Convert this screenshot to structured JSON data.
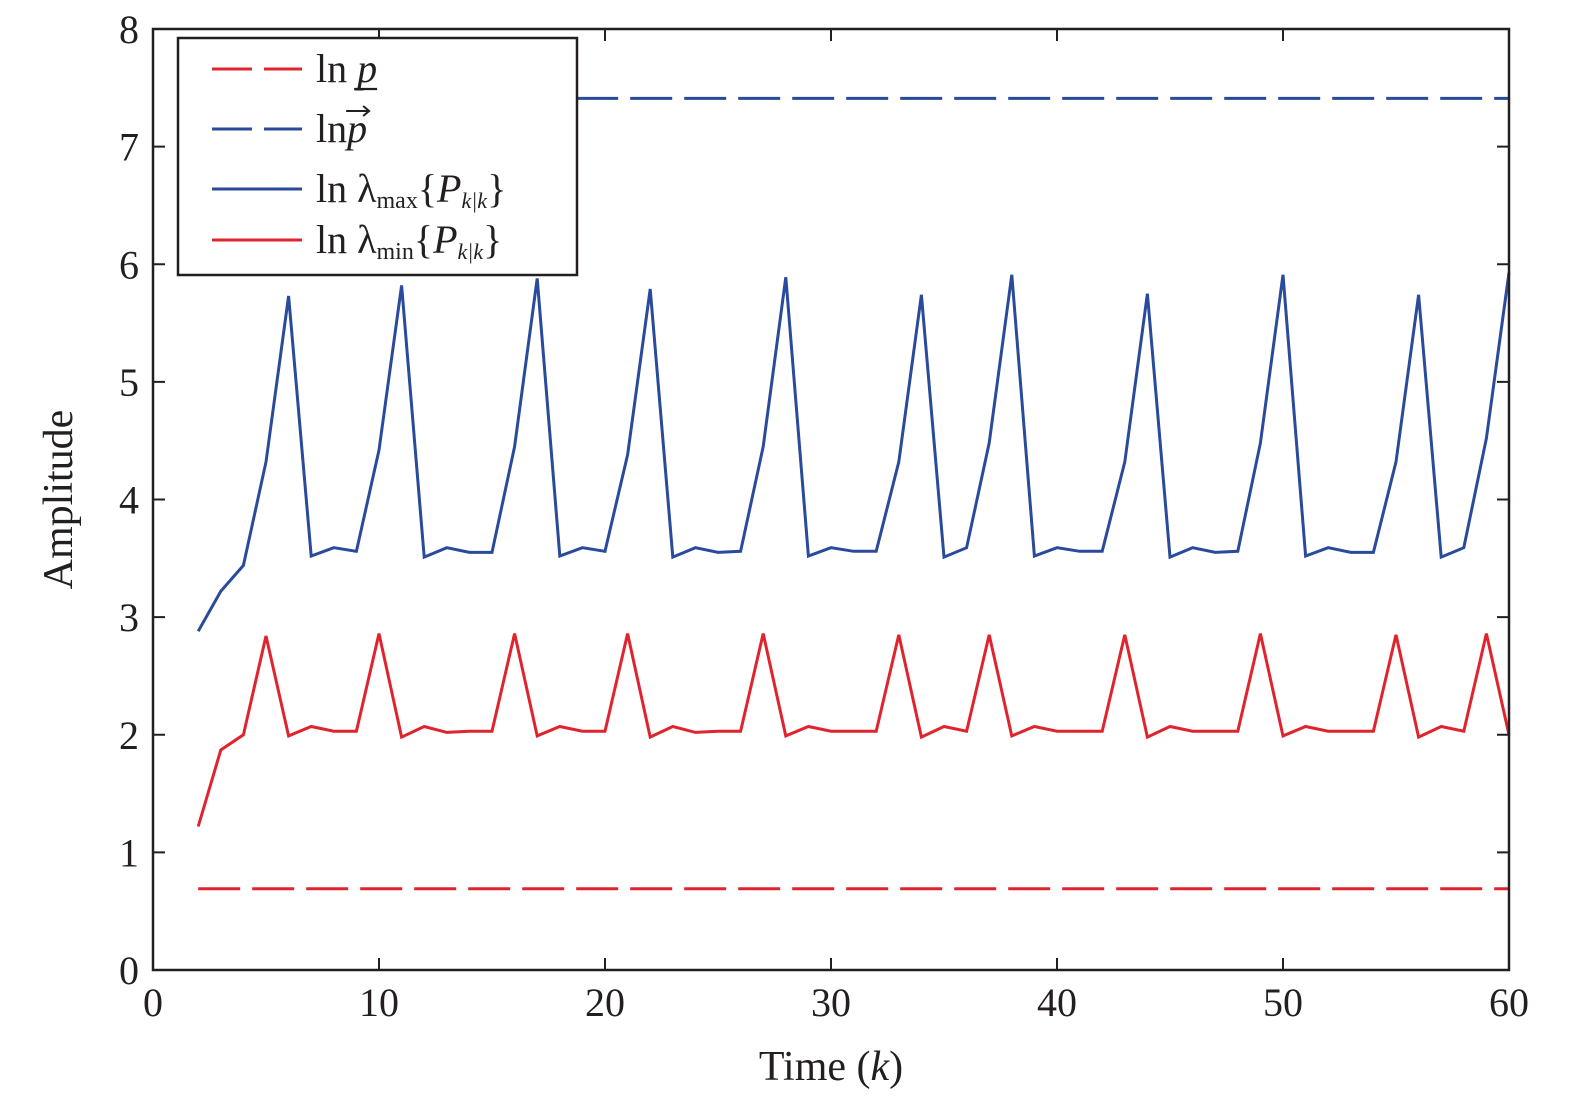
{
  "chart_data": {
    "type": "line",
    "title": "",
    "xlabel": {
      "text": "Time (",
      "var": "k",
      "close": ")"
    },
    "ylabel": "Amplitude",
    "xlim": [
      0,
      60
    ],
    "ylim": [
      0,
      8
    ],
    "xticks": [
      0,
      10,
      20,
      30,
      40,
      50,
      60
    ],
    "yticks": [
      0,
      1,
      2,
      3,
      4,
      5,
      6,
      7,
      8
    ],
    "grid": false,
    "legend_position": "top-left",
    "colors": {
      "red": "#e0242e",
      "blue": "#2a4b9b",
      "axis": "#231f20"
    },
    "series": [
      {
        "id": "ln-p-lower",
        "style": "dashed",
        "color": "#e0242e",
        "legend": {
          "prefix": "ln ",
          "var": "p"
        },
        "x": [
          2,
          60
        ],
        "y": [
          0.69,
          0.69
        ]
      },
      {
        "id": "ln-p-upper",
        "style": "dashed",
        "color": "#2a4b9b",
        "legend": {
          "prefix": "ln",
          "var": "p"
        },
        "x": [
          2,
          60
        ],
        "y": [
          7.41,
          7.41
        ]
      },
      {
        "id": "ln-lambda-max",
        "style": "solid",
        "color": "#2a4b9b",
        "legend": {
          "prefix": "ln λ",
          "sub": "max",
          "open": "{",
          "var": "P",
          "varsub": "k|k",
          "close": "}"
        },
        "x": [
          2,
          3,
          4,
          5,
          6,
          7,
          8,
          9,
          10,
          11,
          12,
          13,
          14,
          15,
          16,
          17,
          18,
          19,
          20,
          21,
          22,
          23,
          24,
          25,
          26,
          27,
          28,
          29,
          30,
          31,
          32,
          33,
          34,
          35,
          36,
          37,
          38,
          39,
          40,
          41,
          42,
          43,
          44,
          45,
          46,
          47,
          48,
          49,
          50,
          51,
          52,
          53,
          54,
          55,
          56,
          57,
          58,
          59,
          60
        ],
        "y": [
          2.88,
          3.22,
          3.44,
          4.32,
          5.73,
          3.52,
          3.59,
          3.56,
          4.42,
          5.82,
          3.51,
          3.59,
          3.55,
          3.55,
          4.45,
          5.88,
          3.52,
          3.59,
          3.56,
          4.38,
          5.79,
          3.51,
          3.59,
          3.55,
          3.56,
          4.45,
          5.89,
          3.52,
          3.59,
          3.56,
          3.56,
          4.32,
          5.74,
          3.51,
          3.59,
          4.48,
          5.91,
          3.52,
          3.59,
          3.56,
          3.56,
          4.32,
          5.75,
          3.51,
          3.59,
          3.55,
          3.56,
          4.48,
          5.91,
          3.52,
          3.59,
          3.55,
          3.55,
          4.32,
          5.74,
          3.51,
          3.59,
          4.52,
          5.93
        ]
      },
      {
        "id": "ln-lambda-min",
        "style": "solid",
        "color": "#e0242e",
        "legend": {
          "prefix": "ln λ",
          "sub": "min",
          "open": "{",
          "var": "P",
          "varsub": "k|k",
          "close": "}"
        },
        "x": [
          2,
          3,
          4,
          5,
          6,
          7,
          8,
          9,
          10,
          11,
          12,
          13,
          14,
          15,
          16,
          17,
          18,
          19,
          20,
          21,
          22,
          23,
          24,
          25,
          26,
          27,
          28,
          29,
          30,
          31,
          32,
          33,
          34,
          35,
          36,
          37,
          38,
          39,
          40,
          41,
          42,
          43,
          44,
          45,
          46,
          47,
          48,
          49,
          50,
          51,
          52,
          53,
          54,
          55,
          56,
          57,
          58,
          59,
          60
        ],
        "y": [
          1.22,
          1.87,
          2.0,
          2.84,
          1.99,
          2.07,
          2.03,
          2.03,
          2.86,
          1.98,
          2.07,
          2.02,
          2.03,
          2.03,
          2.86,
          1.99,
          2.07,
          2.03,
          2.03,
          2.86,
          1.98,
          2.07,
          2.02,
          2.03,
          2.03,
          2.86,
          1.99,
          2.07,
          2.03,
          2.03,
          2.03,
          2.85,
          1.98,
          2.07,
          2.03,
          2.85,
          1.99,
          2.07,
          2.03,
          2.03,
          2.03,
          2.85,
          1.98,
          2.07,
          2.03,
          2.03,
          2.03,
          2.86,
          1.99,
          2.07,
          2.03,
          2.03,
          2.03,
          2.85,
          1.98,
          2.07,
          2.03,
          2.86,
          2.0
        ]
      }
    ]
  }
}
